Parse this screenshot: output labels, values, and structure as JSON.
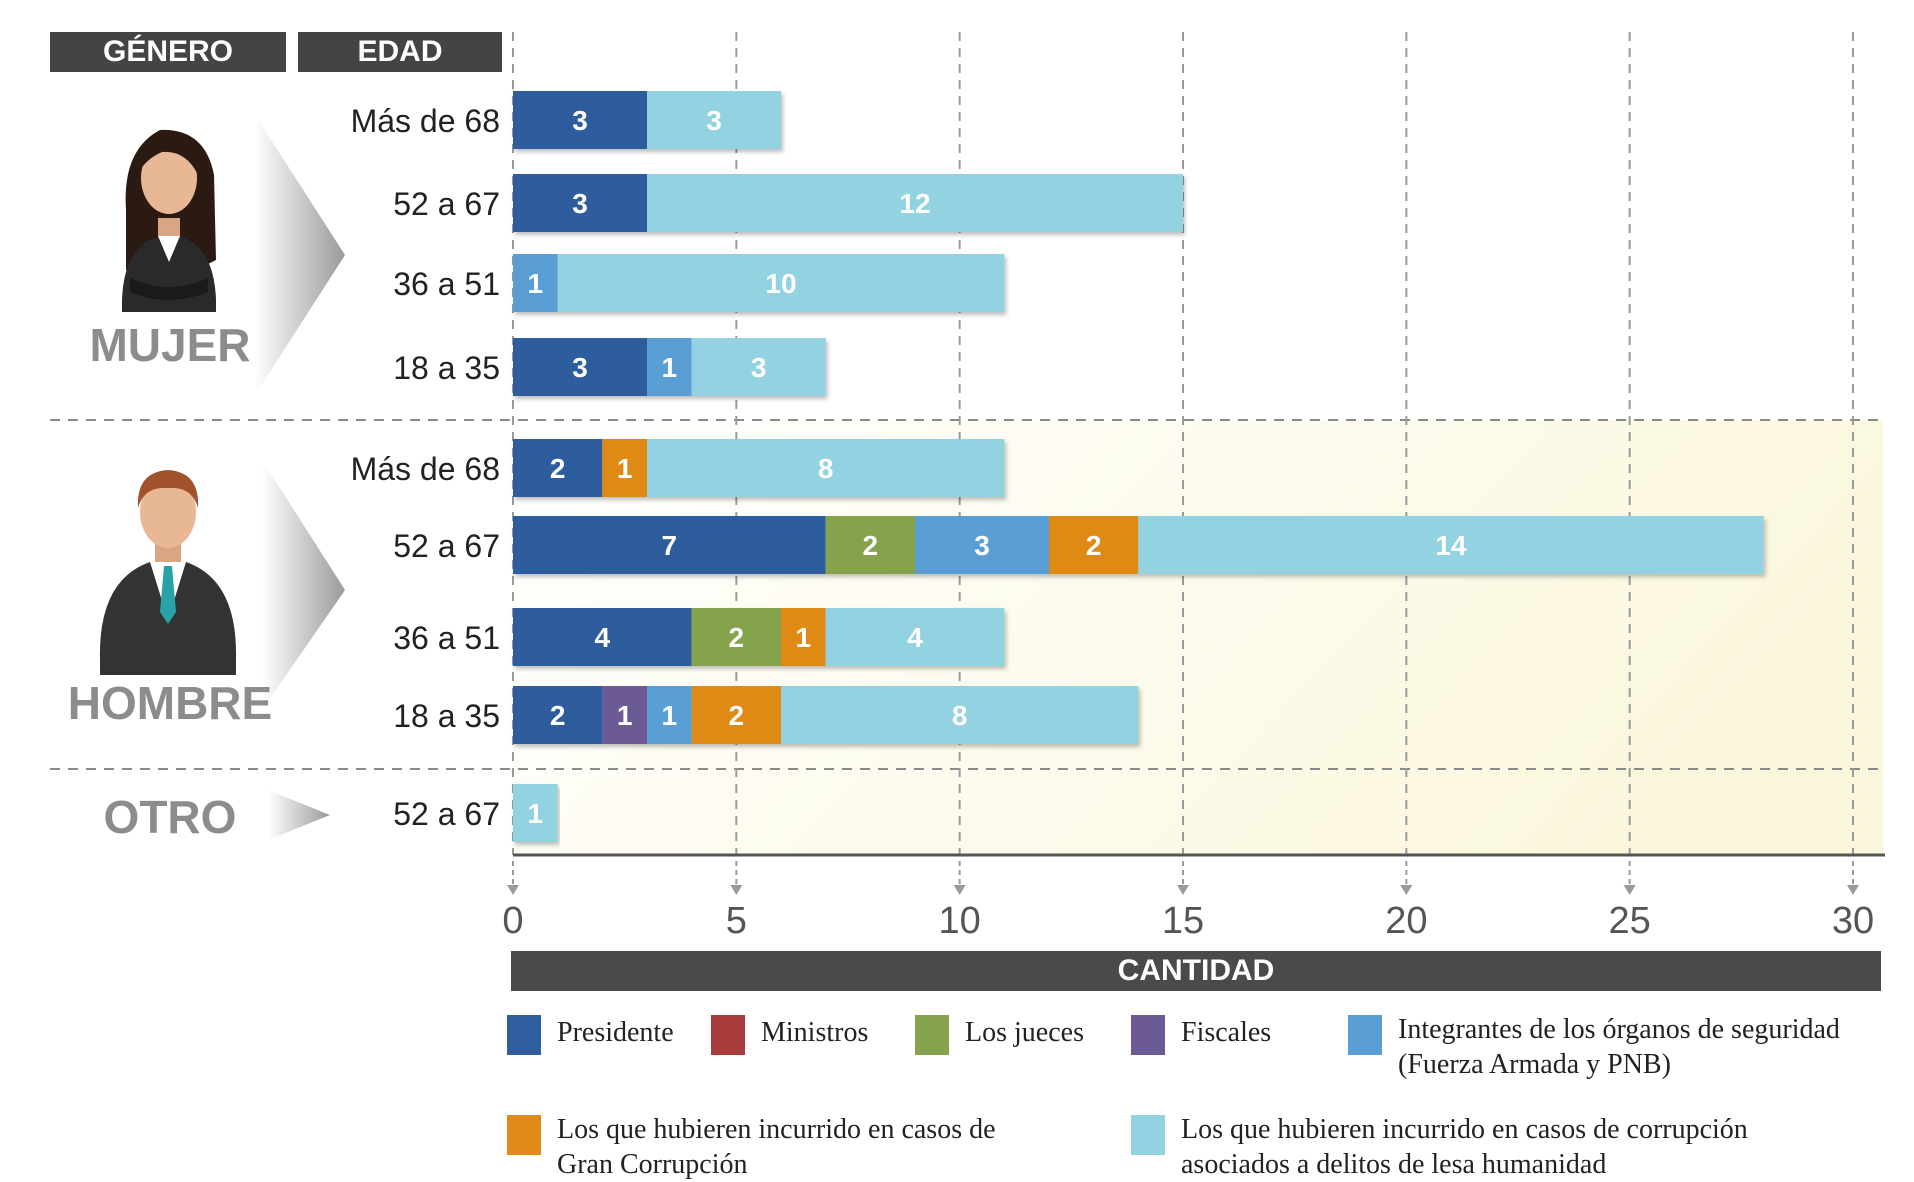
{
  "headers": {
    "gender": "GÉNERO",
    "age": "EDAD"
  },
  "groups": [
    {
      "key": "mujer",
      "label": "MUJER"
    },
    {
      "key": "hombre",
      "label": "HOMBRE"
    },
    {
      "key": "otro",
      "label": "OTRO"
    }
  ],
  "colors": {
    "presidente": "#2f5d9e",
    "ministros": "#a83c3c",
    "jueces": "#85a34c",
    "fiscales": "#6c5a94",
    "seguridad": "#5a9ed6",
    "gran_corrupcion": "#e08a17",
    "lesa_humanidad": "#93d2e1"
  },
  "chart_data": {
    "type": "bar",
    "orientation": "horizontal",
    "stacked": true,
    "xlabel": "CANTIDAD",
    "xlim": [
      0,
      30
    ],
    "xticks": [
      0,
      5,
      10,
      15,
      20,
      25,
      30
    ],
    "grid": true,
    "legend_position": "bottom",
    "series": [
      {
        "key": "presidente",
        "name": "Presidente"
      },
      {
        "key": "ministros",
        "name": "Ministros"
      },
      {
        "key": "jueces",
        "name": "Los jueces"
      },
      {
        "key": "fiscales",
        "name": "Fiscales"
      },
      {
        "key": "seguridad",
        "name": "Integrantes de los órganos de seguridad (Fuerza Armada y PNB)"
      },
      {
        "key": "gran_corrupcion",
        "name": "Los que hubieren incurrido en casos de Gran Corrupción"
      },
      {
        "key": "lesa_humanidad",
        "name": "Los que hubieren incurrido en casos de corrupción asociados a delitos de lesa humanidad"
      }
    ],
    "rows": [
      {
        "group": "MUJER",
        "age": "Más de 68",
        "segments": [
          {
            "series": "presidente",
            "value": 3
          },
          {
            "series": "lesa_humanidad",
            "value": 3
          }
        ]
      },
      {
        "group": "MUJER",
        "age": "52 a 67",
        "segments": [
          {
            "series": "presidente",
            "value": 3
          },
          {
            "series": "lesa_humanidad",
            "value": 12
          }
        ]
      },
      {
        "group": "MUJER",
        "age": "36 a 51",
        "segments": [
          {
            "series": "seguridad",
            "value": 1
          },
          {
            "series": "lesa_humanidad",
            "value": 10
          }
        ]
      },
      {
        "group": "MUJER",
        "age": "18 a 35",
        "segments": [
          {
            "series": "presidente",
            "value": 3
          },
          {
            "series": "seguridad",
            "value": 1
          },
          {
            "series": "lesa_humanidad",
            "value": 3
          }
        ]
      },
      {
        "group": "HOMBRE",
        "age": "Más de 68",
        "segments": [
          {
            "series": "presidente",
            "value": 2
          },
          {
            "series": "gran_corrupcion",
            "value": 1
          },
          {
            "series": "lesa_humanidad",
            "value": 8
          }
        ]
      },
      {
        "group": "HOMBRE",
        "age": "52 a 67",
        "segments": [
          {
            "series": "presidente",
            "value": 7
          },
          {
            "series": "jueces",
            "value": 2
          },
          {
            "series": "seguridad",
            "value": 3
          },
          {
            "series": "gran_corrupcion",
            "value": 2
          },
          {
            "series": "lesa_humanidad",
            "value": 14
          }
        ]
      },
      {
        "group": "HOMBRE",
        "age": "36 a 51",
        "segments": [
          {
            "series": "presidente",
            "value": 4
          },
          {
            "series": "jueces",
            "value": 2
          },
          {
            "series": "gran_corrupcion",
            "value": 1
          },
          {
            "series": "lesa_humanidad",
            "value": 4
          }
        ]
      },
      {
        "group": "HOMBRE",
        "age": "18 a 35",
        "segments": [
          {
            "series": "presidente",
            "value": 2
          },
          {
            "series": "fiscales",
            "value": 1
          },
          {
            "series": "seguridad",
            "value": 1
          },
          {
            "series": "gran_corrupcion",
            "value": 2
          },
          {
            "series": "lesa_humanidad",
            "value": 8
          }
        ]
      },
      {
        "group": "OTRO",
        "age": "52 a 67",
        "segments": [
          {
            "series": "lesa_humanidad",
            "value": 1
          }
        ]
      }
    ]
  }
}
